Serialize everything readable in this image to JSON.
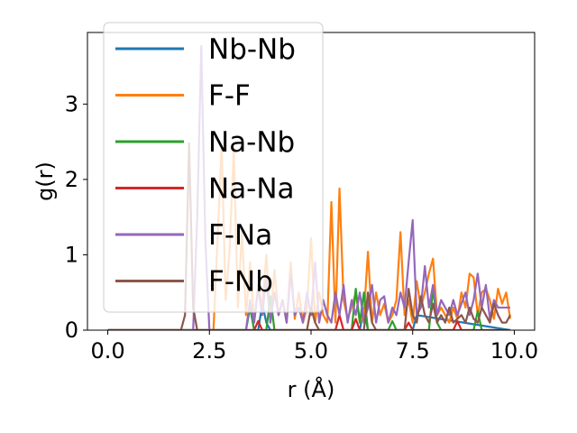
{
  "chart_data": {
    "type": "line",
    "title": "",
    "xlabel": "r (Å)",
    "ylabel": "g(r)",
    "xlim": [
      -0.5,
      10.5
    ],
    "ylim": [
      0,
      3.95
    ],
    "xticks": [
      0.0,
      2.5,
      5.0,
      7.5,
      10.0
    ],
    "xtick_labels": [
      "0.0",
      "2.5",
      "5.0",
      "7.5",
      "10.0"
    ],
    "yticks": [
      0,
      1,
      2,
      3
    ],
    "ytick_labels": [
      "0",
      "1",
      "2",
      "3"
    ],
    "grid": false,
    "legend_position": "upper-left",
    "series": [
      {
        "name": "Nb-Nb",
        "color": "#1f77b4",
        "x": [
          0,
          3.7,
          3.8,
          3.9,
          4.0,
          6.2,
          6.3,
          6.4,
          7.5,
          7.6,
          9.9
        ],
        "y": [
          0,
          0,
          0.35,
          0.1,
          0,
          0,
          0.3,
          0,
          0,
          0.2,
          0
        ]
      },
      {
        "name": "F-F",
        "color": "#ff7f0e",
        "x": [
          0,
          2.6,
          2.7,
          2.8,
          2.9,
          3.0,
          3.1,
          3.2,
          3.3,
          3.4,
          3.5,
          3.6,
          3.7,
          3.8,
          3.9,
          4.0,
          4.1,
          4.2,
          4.3,
          4.4,
          4.5,
          4.6,
          4.7,
          4.8,
          4.9,
          5.0,
          5.1,
          5.2,
          5.3,
          5.4,
          5.5,
          5.6,
          5.7,
          5.8,
          5.9,
          6.0,
          6.1,
          6.2,
          6.3,
          6.4,
          6.5,
          6.6,
          6.7,
          6.8,
          6.9,
          7.0,
          7.1,
          7.2,
          7.3,
          7.4,
          7.5,
          7.6,
          7.7,
          7.8,
          7.9,
          8.0,
          8.1,
          8.2,
          8.3,
          8.4,
          8.5,
          8.6,
          8.7,
          8.8,
          8.9,
          9.0,
          9.1,
          9.2,
          9.3,
          9.4,
          9.5,
          9.6,
          9.7,
          9.8,
          9.9
        ],
        "y": [
          0,
          0,
          1.2,
          2.45,
          0.4,
          1.1,
          2.4,
          0.3,
          1.3,
          0.2,
          0.9,
          0.1,
          0.6,
          0.3,
          1.0,
          0.1,
          0.8,
          0.2,
          0.4,
          0.1,
          0.9,
          0.15,
          0.5,
          0.1,
          0.3,
          1.22,
          0.1,
          0.5,
          0.2,
          0.1,
          1.7,
          0.1,
          1.88,
          0.4,
          0.15,
          0.3,
          0.5,
          0.1,
          0.2,
          1.04,
          0.1,
          0.5,
          0.2,
          0.35,
          0.1,
          0.2,
          0.4,
          1.3,
          0.2,
          0.4,
          0.1,
          0.65,
          0.3,
          0.5,
          0.75,
          0.95,
          0.2,
          0.3,
          0.2,
          0.1,
          0.3,
          0.15,
          0.5,
          0.3,
          0.75,
          0.7,
          0.2,
          0.5,
          0.55,
          0.4,
          0.15,
          0.55,
          0.35,
          0.5,
          0.15
        ]
      },
      {
        "name": "Na-Nb",
        "color": "#2ca02c",
        "x": [
          0,
          3.4,
          3.5,
          3.6,
          3.9,
          4.0,
          4.1,
          6.0,
          6.1,
          6.2,
          6.3,
          6.4,
          6.9,
          7.0,
          7.1,
          7.9,
          8.0,
          8.1,
          8.2,
          9.0,
          9.1,
          9.2,
          9.9
        ],
        "y": [
          0,
          0,
          0.3,
          0,
          0,
          0.45,
          0,
          0,
          0.55,
          0.1,
          0.5,
          0,
          0,
          0.12,
          0,
          0,
          0.55,
          0.1,
          0,
          0,
          0.25,
          0,
          0
        ]
      },
      {
        "name": "Na-Na",
        "color": "#d62728",
        "x": [
          0,
          3.6,
          3.7,
          3.8,
          5.6,
          5.7,
          5.8,
          6.0,
          6.1,
          6.2,
          7.3,
          7.4,
          7.5,
          8.5,
          8.6,
          8.7,
          9.9
        ],
        "y": [
          0,
          0,
          0.12,
          0,
          0,
          0.2,
          0,
          0,
          0.15,
          0,
          0,
          0.1,
          0,
          0,
          0.12,
          0,
          0
        ]
      },
      {
        "name": "F-Na",
        "color": "#9467bd",
        "x": [
          0,
          2.1,
          2.2,
          2.3,
          2.4,
          2.5,
          3.4,
          3.5,
          3.6,
          3.7,
          3.8,
          3.9,
          4.0,
          4.1,
          4.2,
          4.3,
          4.4,
          4.5,
          4.6,
          4.7,
          4.8,
          4.9,
          5.0,
          5.1,
          5.2,
          5.3,
          5.4,
          5.5,
          5.6,
          5.7,
          5.8,
          5.9,
          6.0,
          6.1,
          6.2,
          6.3,
          6.4,
          6.5,
          6.6,
          6.7,
          6.8,
          6.9,
          7.0,
          7.1,
          7.2,
          7.3,
          7.4,
          7.5,
          7.6,
          7.7,
          7.8,
          7.9,
          8.0,
          8.1,
          8.2,
          8.3,
          8.4,
          8.5,
          8.6,
          8.7,
          8.8,
          8.9,
          9.0,
          9.1,
          9.2,
          9.3,
          9.4,
          9.5,
          9.6,
          9.7,
          9.8,
          9.9
        ],
        "y": [
          0,
          0,
          1.5,
          3.77,
          1.2,
          0,
          0,
          0.4,
          0.1,
          0.55,
          0.2,
          0.7,
          0.1,
          0.5,
          0.2,
          0.4,
          0.1,
          0.75,
          0.2,
          0.3,
          0.1,
          0.5,
          0.2,
          0.9,
          0.1,
          0.4,
          0.2,
          0.1,
          0.5,
          0.2,
          0.6,
          0.1,
          0.4,
          0.2,
          0.5,
          0.1,
          0.3,
          0.6,
          0.1,
          0.4,
          0.45,
          0.1,
          0.3,
          0.2,
          0.5,
          0.3,
          0.9,
          1.46,
          0.2,
          0.3,
          0.85,
          0.3,
          0.6,
          0.2,
          0.4,
          0.3,
          0.2,
          0.4,
          0.2,
          0.35,
          0.5,
          0.2,
          0.4,
          0.75,
          0.3,
          0.6,
          0.15,
          0.4,
          0.3,
          0.3,
          0.3,
          0.3
        ]
      },
      {
        "name": "F-Nb",
        "color": "#8c564b",
        "x": [
          0,
          1.8,
          1.9,
          2.0,
          2.1,
          2.2,
          4.9,
          5.0,
          5.1,
          5.2,
          6.3,
          6.4,
          6.5,
          6.6,
          7.3,
          7.4,
          7.5,
          7.6,
          7.7,
          7.8,
          7.9,
          8.0,
          8.1,
          8.2,
          8.3,
          8.4,
          8.5,
          8.6,
          8.7,
          8.8,
          8.9,
          9.0,
          9.1,
          9.2,
          9.3,
          9.4,
          9.5,
          9.6,
          9.7,
          9.8,
          9.9
        ],
        "y": [
          0,
          0,
          0.2,
          2.48,
          0.3,
          0,
          0,
          0.3,
          0.1,
          0,
          0,
          0.5,
          0.1,
          0,
          0,
          0.55,
          0.2,
          0.1,
          0.45,
          0.2,
          0.1,
          0.35,
          0.1,
          0.2,
          0.1,
          0.3,
          0.1,
          0.15,
          0.2,
          0.1,
          0.3,
          0.15,
          0.1,
          0.3,
          0.2,
          0.1,
          0.35,
          0.2,
          0.1,
          0.1,
          0.2
        ]
      }
    ]
  }
}
